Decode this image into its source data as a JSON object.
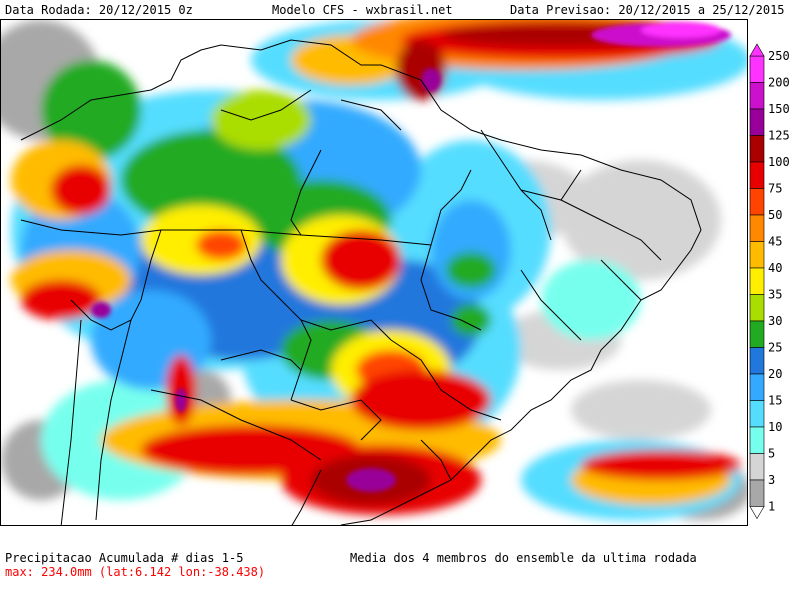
{
  "header": {
    "left": "Data Rodada: 20/12/2015 0z",
    "center": "Modelo CFS - wxbrasil.net",
    "right": "Data Previsao: 20/12/2015 a 25/12/2015"
  },
  "footer": {
    "left_line1": "Precipitacao Acumulada # dias 1-5",
    "left_line2": "max: 234.0mm (lat:6.142 lon:-38.438)",
    "right": "Media dos 4 membros do ensemble da ultima rodada"
  },
  "legend": {
    "levels": [
      "250",
      "200",
      "150",
      "125",
      "100",
      "75",
      "50",
      "45",
      "40",
      "35",
      "30",
      "25",
      "20",
      "15",
      "10",
      "5",
      "3",
      "1"
    ],
    "colors": [
      "#ff33ff",
      "#cc11cc",
      "#990099",
      "#aa0000",
      "#e80000",
      "#ff4400",
      "#ff8800",
      "#ffbb00",
      "#ffee00",
      "#aadd00",
      "#22aa22",
      "#2277dd",
      "#33aaff",
      "#55ddff",
      "#77ffee",
      "#d5d5d5",
      "#a8a8a8"
    ]
  }
}
